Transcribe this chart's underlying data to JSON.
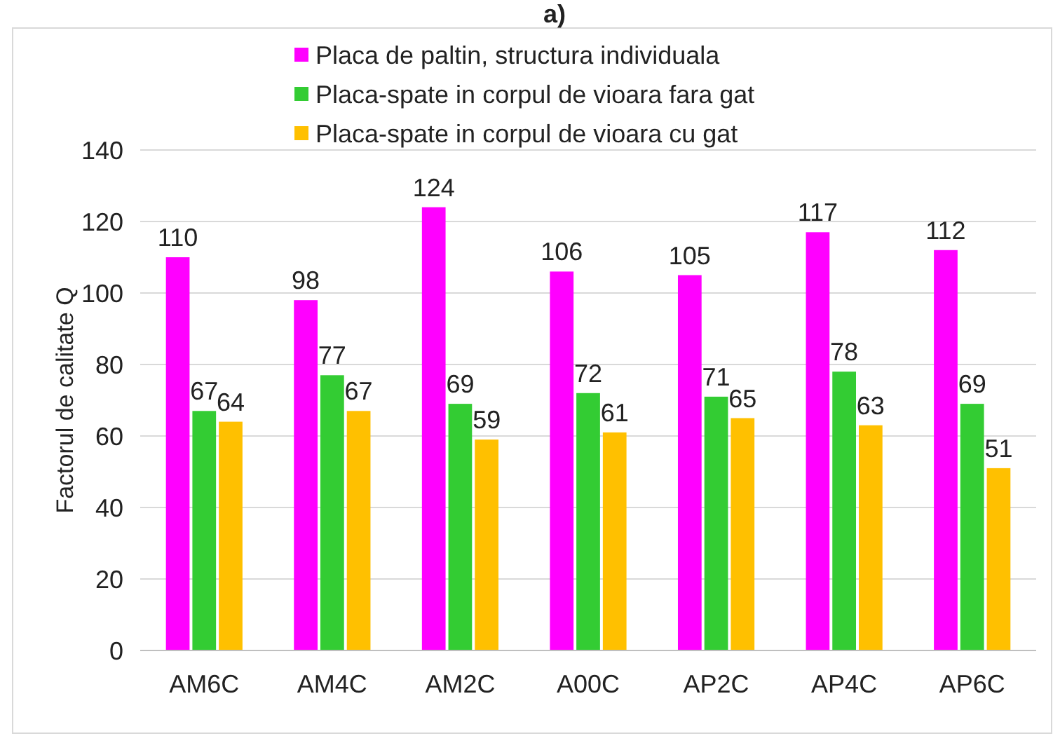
{
  "chart_data": {
    "type": "bar",
    "title": "a)",
    "ylabel": "Factorul de calitate Q",
    "categories": [
      "AM6C",
      "AM4C",
      "AM2C",
      "A00C",
      "AP2C",
      "AP4C",
      "AP6C"
    ],
    "series": [
      {
        "name": "Placa de paltin, structura individuala",
        "color": "#ff00ff",
        "values": [
          110,
          98,
          124,
          106,
          105,
          117,
          112
        ]
      },
      {
        "name": "Placa-spate in corpul de vioara fara gat",
        "color": "#33cc33",
        "values": [
          67,
          77,
          69,
          72,
          71,
          78,
          69
        ]
      },
      {
        "name": "Placa-spate in corpul de vioara cu gat",
        "color": "#ffc000",
        "values": [
          64,
          67,
          59,
          61,
          65,
          63,
          51
        ]
      }
    ],
    "ylim": [
      0,
      140
    ],
    "yticks": [
      0,
      20,
      40,
      60,
      80,
      100,
      120,
      140
    ],
    "grid": "y",
    "legend": "top",
    "data_labels": true
  }
}
